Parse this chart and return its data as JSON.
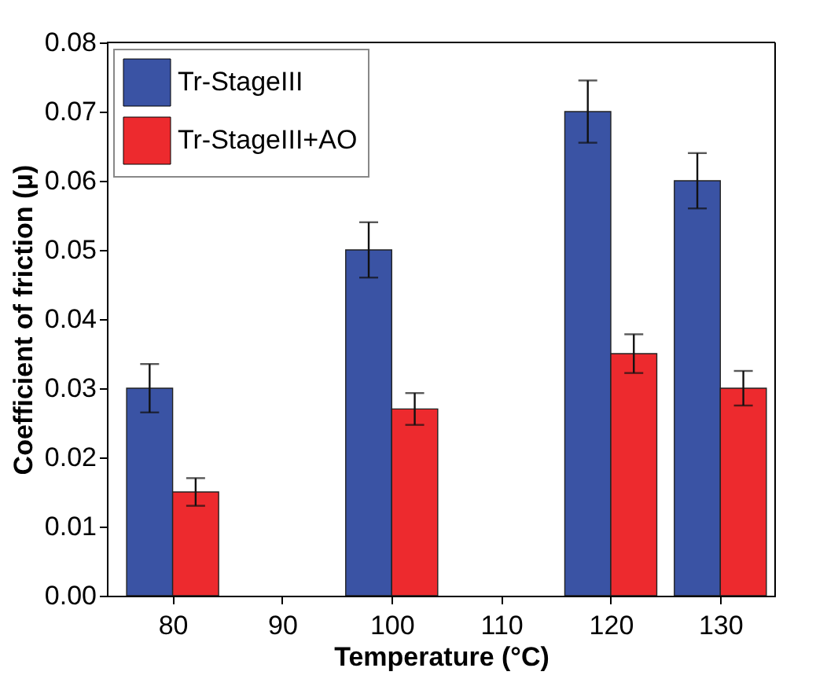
{
  "chart_data": {
    "type": "bar",
    "xlabel": "Temperature (°C)",
    "ylabel": "Coefficient of friction (μ)",
    "x": [
      80,
      100,
      120,
      130
    ],
    "series": [
      {
        "name": "Tr-StageIII",
        "color": "#3a53a4",
        "values": [
          0.03,
          0.05,
          0.07,
          0.06
        ],
        "errors": [
          0.0035,
          0.004,
          0.0045,
          0.004
        ]
      },
      {
        "name": "Tr-StageIII+AO",
        "color": "#ed2a2e",
        "values": [
          0.015,
          0.027,
          0.035,
          0.03
        ],
        "errors": [
          0.002,
          0.0023,
          0.0028,
          0.0025
        ]
      }
    ],
    "xlim": [
      74,
      135
    ],
    "xticks": [
      80,
      90,
      100,
      110,
      120,
      130
    ],
    "ylim": [
      0,
      0.08
    ],
    "yticks": [
      {
        "value": 0,
        "label": "0.00"
      },
      0.01,
      0.02,
      0.03,
      0.04,
      0.05,
      0.06,
      0.07,
      0.08
    ],
    "grid": false,
    "legend": "top left"
  }
}
